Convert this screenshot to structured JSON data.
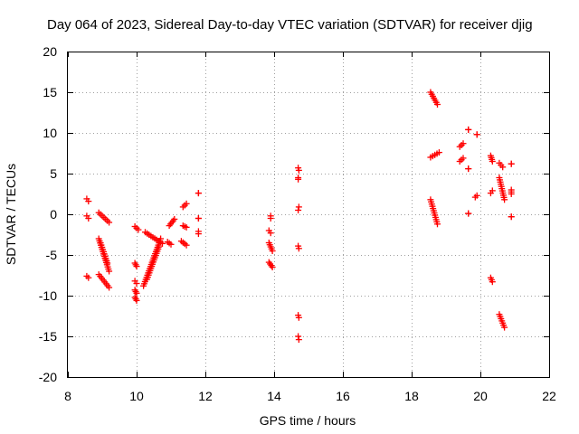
{
  "chart_data": {
    "type": "scatter",
    "title": "Day 064 of 2023, Sidereal Day-to-day VTEC variation (SDTVAR) for receiver djig",
    "xlabel": "GPS time / hours",
    "ylabel": "SDTVAR / TECUs",
    "xlim": [
      8,
      22
    ],
    "ylim": [
      -20,
      20
    ],
    "xticks": [
      8,
      10,
      12,
      14,
      16,
      18,
      20,
      22
    ],
    "yticks": [
      -20,
      -15,
      -10,
      -5,
      0,
      5,
      10,
      15,
      20
    ],
    "grid": true,
    "marker": "+",
    "color": "#ff0000",
    "tracks": [
      {
        "x": [
          8.55,
          8.6
        ],
        "y": [
          1.9,
          1.6
        ]
      },
      {
        "x": [
          8.55,
          8.6
        ],
        "y": [
          -0.2,
          -0.5
        ]
      },
      {
        "x": [
          8.55,
          8.6
        ],
        "y": [
          -7.6,
          -7.8
        ]
      },
      {
        "x": [
          8.9,
          9.2
        ],
        "y": [
          0.2,
          -1.0
        ]
      },
      {
        "x": [
          8.9,
          9.2
        ],
        "y": [
          -3.0,
          -7.0
        ]
      },
      {
        "x": [
          8.95,
          9.15
        ],
        "y": [
          -3.5,
          -6.0
        ]
      },
      {
        "x": [
          8.9,
          9.2
        ],
        "y": [
          -7.4,
          -9.0
        ]
      },
      {
        "x": [
          9.95,
          10.05
        ],
        "y": [
          -1.5,
          -1.9
        ]
      },
      {
        "x": [
          9.95,
          10.0
        ],
        "y": [
          -6.0,
          -6.4
        ]
      },
      {
        "x": [
          9.95,
          10.0
        ],
        "y": [
          -8.2,
          -8.5
        ]
      },
      {
        "x": [
          9.95,
          10.0
        ],
        "y": [
          -9.3,
          -9.7
        ]
      },
      {
        "x": [
          9.95,
          10.0
        ],
        "y": [
          -10.2,
          -10.6
        ]
      },
      {
        "x": [
          10.25,
          10.75
        ],
        "y": [
          -2.2,
          -3.6
        ]
      },
      {
        "x": [
          10.2,
          10.7
        ],
        "y": [
          -8.8,
          -3.0
        ]
      },
      {
        "x": [
          10.3,
          10.65
        ],
        "y": [
          -8.0,
          -4.0
        ]
      },
      {
        "x": [
          10.95,
          11.1
        ],
        "y": [
          -1.4,
          -0.6
        ]
      },
      {
        "x": [
          10.9,
          11.0
        ],
        "y": [
          -3.4,
          -3.7
        ]
      },
      {
        "x": [
          11.35,
          11.45
        ],
        "y": [
          0.9,
          1.3
        ]
      },
      {
        "x": [
          11.35,
          11.45
        ],
        "y": [
          -1.4,
          -1.6
        ]
      },
      {
        "x": [
          11.3,
          11.45
        ],
        "y": [
          -3.3,
          -3.8
        ]
      },
      {
        "x": [
          11.8,
          11.8
        ],
        "y": [
          2.6,
          2.6
        ]
      },
      {
        "x": [
          11.8,
          11.8
        ],
        "y": [
          -0.5,
          -0.5
        ]
      },
      {
        "x": [
          11.8,
          11.8
        ],
        "y": [
          -2.1,
          -2.4
        ]
      },
      {
        "x": [
          13.9,
          13.9
        ],
        "y": [
          -0.2,
          -0.5
        ]
      },
      {
        "x": [
          13.85,
          13.9
        ],
        "y": [
          -2.0,
          -2.3
        ]
      },
      {
        "x": [
          13.85,
          13.95
        ],
        "y": [
          -3.5,
          -4.5
        ]
      },
      {
        "x": [
          13.85,
          13.95
        ],
        "y": [
          -5.9,
          -6.5
        ]
      },
      {
        "x": [
          14.7,
          14.72
        ],
        "y": [
          5.7,
          5.4
        ]
      },
      {
        "x": [
          14.7,
          14.7
        ],
        "y": [
          4.3,
          4.5
        ]
      },
      {
        "x": [
          14.7,
          14.72
        ],
        "y": [
          0.5,
          0.9
        ]
      },
      {
        "x": [
          14.7,
          14.72
        ],
        "y": [
          -3.9,
          -4.2
        ]
      },
      {
        "x": [
          14.7,
          14.72
        ],
        "y": [
          -12.4,
          -12.7
        ]
      },
      {
        "x": [
          14.7,
          14.72
        ],
        "y": [
          -15.0,
          -15.4
        ]
      },
      {
        "x": [
          18.55,
          18.75
        ],
        "y": [
          15.0,
          13.5
        ]
      },
      {
        "x": [
          18.55,
          18.8
        ],
        "y": [
          7.0,
          7.6
        ]
      },
      {
        "x": [
          18.55,
          18.75
        ],
        "y": [
          1.8,
          -1.2
        ]
      },
      {
        "x": [
          19.4,
          19.5
        ],
        "y": [
          8.3,
          8.7
        ]
      },
      {
        "x": [
          19.4,
          19.5
        ],
        "y": [
          6.5,
          6.9
        ]
      },
      {
        "x": [
          19.65,
          19.65
        ],
        "y": [
          10.4,
          10.4
        ]
      },
      {
        "x": [
          19.65,
          19.65
        ],
        "y": [
          5.6,
          5.6
        ]
      },
      {
        "x": [
          19.65,
          19.65
        ],
        "y": [
          0.1,
          0.1
        ]
      },
      {
        "x": [
          19.9,
          19.9
        ],
        "y": [
          9.8,
          9.8
        ]
      },
      {
        "x": [
          19.85,
          19.9
        ],
        "y": [
          2.1,
          2.3
        ]
      },
      {
        "x": [
          20.3,
          20.35
        ],
        "y": [
          7.2,
          6.5
        ]
      },
      {
        "x": [
          20.3,
          20.35
        ],
        "y": [
          2.6,
          2.9
        ]
      },
      {
        "x": [
          20.3,
          20.35
        ],
        "y": [
          -7.8,
          -8.3
        ]
      },
      {
        "x": [
          20.55,
          20.65
        ],
        "y": [
          6.3,
          5.8
        ]
      },
      {
        "x": [
          20.55,
          20.7
        ],
        "y": [
          4.5,
          1.8
        ]
      },
      {
        "x": [
          20.55,
          20.7
        ],
        "y": [
          -12.3,
          -13.9
        ]
      },
      {
        "x": [
          20.9,
          20.9
        ],
        "y": [
          6.2,
          6.2
        ]
      },
      {
        "x": [
          20.9,
          20.9
        ],
        "y": [
          2.5,
          3.0
        ]
      },
      {
        "x": [
          20.9,
          20.9
        ],
        "y": [
          -0.3,
          -0.3
        ]
      }
    ]
  }
}
